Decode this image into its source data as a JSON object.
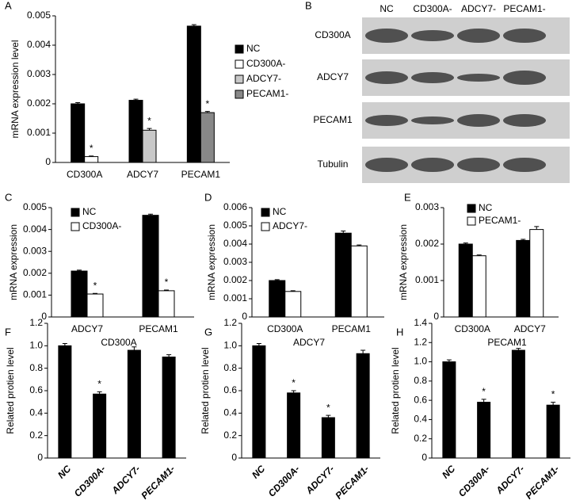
{
  "chart_data": [
    {
      "type": "bar",
      "panel": "A",
      "ylabel": "mRNA expression level",
      "categories": [
        "CD300A",
        "ADCY7",
        "PECAM1"
      ],
      "series": [
        {
          "name": "NC",
          "color": "#000000",
          "values": [
            0.002,
            0.00212,
            0.00465
          ],
          "errors": [
            4e-05,
            4e-05,
            5e-05
          ],
          "markers": [
            null,
            null,
            null
          ]
        },
        {
          "name": "CD300A-",
          "color": "#ffffff",
          "values": [
            0.0002,
            null,
            null
          ],
          "errors": [
            2e-05,
            null,
            null
          ],
          "markers": [
            "*",
            null,
            null
          ]
        },
        {
          "name": "ADCY7-",
          "color": "#c8c8c8",
          "values": [
            null,
            0.0011,
            null
          ],
          "errors": [
            null,
            6e-05,
            null
          ],
          "markers": [
            null,
            "*",
            null
          ]
        },
        {
          "name": "PECAM1-",
          "color": "#888888",
          "values": [
            null,
            null,
            0.0017
          ],
          "errors": [
            null,
            null,
            4e-05
          ],
          "markers": [
            null,
            null,
            "*"
          ]
        }
      ],
      "ylim": [
        0,
        0.005
      ],
      "yticks": [
        0,
        0.001,
        0.002,
        0.003,
        0.004,
        0.005
      ],
      "legend": "right"
    },
    {
      "type": "blot",
      "panel": "B",
      "lanes": [
        "NC",
        "CD300A-",
        "ADCY7-",
        "PECAM1-"
      ],
      "rows": [
        "CD300A",
        "ADCY7",
        "PECAM1",
        "Tubulin"
      ]
    },
    {
      "type": "bar",
      "panel": "C",
      "ylabel": "mRNA expression",
      "categories": [
        "ADCY7",
        "PECAM1"
      ],
      "series": [
        {
          "name": "NC",
          "color": "#000000",
          "values": [
            0.0021,
            0.00465
          ],
          "errors": [
            4e-05,
            5e-05
          ],
          "markers": [
            null,
            null
          ]
        },
        {
          "name": "CD300A-",
          "color": "#ffffff",
          "values": [
            0.00105,
            0.0012
          ],
          "errors": [
            3e-05,
            3e-05
          ],
          "markers": [
            "*",
            "*"
          ]
        }
      ],
      "ylim": [
        0,
        0.005
      ],
      "yticks": [
        0,
        0.001,
        0.002,
        0.003,
        0.004,
        0.005
      ],
      "legend": "upper left"
    },
    {
      "type": "bar",
      "panel": "D",
      "ylabel": "mRNA expression",
      "categories": [
        "CD300A",
        "PECAM1"
      ],
      "series": [
        {
          "name": "NC",
          "color": "#000000",
          "values": [
            0.002,
            0.0046
          ],
          "errors": [
            5e-05,
            0.00012
          ],
          "markers": [
            null,
            null
          ]
        },
        {
          "name": "ADCY7-",
          "color": "#ffffff",
          "values": [
            0.0014,
            0.0039
          ],
          "errors": [
            4e-05,
            5e-05
          ],
          "markers": [
            null,
            null
          ]
        }
      ],
      "ylim": [
        0,
        0.006
      ],
      "yticks": [
        0,
        0.001,
        0.002,
        0.003,
        0.004,
        0.005,
        0.006
      ],
      "legend": "upper left"
    },
    {
      "type": "bar",
      "panel": "E",
      "ylabel": "mRNA expression",
      "categories": [
        "CD300A",
        "ADCY7"
      ],
      "series": [
        {
          "name": "NC",
          "color": "#000000",
          "values": [
            0.002,
            0.0021
          ],
          "errors": [
            3e-05,
            3e-05
          ],
          "markers": [
            null,
            null
          ]
        },
        {
          "name": "PECAM1-",
          "color": "#ffffff",
          "values": [
            0.00168,
            0.0024
          ],
          "errors": [
            2e-05,
            8e-05
          ],
          "markers": [
            null,
            null
          ]
        }
      ],
      "ylim": [
        0,
        0.003
      ],
      "yticks": [
        0,
        0.001,
        0.002,
        0.003
      ],
      "legend": "upper left"
    },
    {
      "type": "bar",
      "panel": "F",
      "title": "CD300A",
      "ylabel": "Related protien level",
      "categories": [
        "NC",
        "CD300A-",
        "ADCY7-",
        "PECAM1-"
      ],
      "series": [
        {
          "color": "#000000",
          "values": [
            1.0,
            0.57,
            0.96,
            0.9
          ],
          "errors": [
            0.02,
            0.02,
            0.03,
            0.02
          ],
          "markers": [
            null,
            "*",
            null,
            null
          ]
        }
      ],
      "ylim": [
        0,
        1.2
      ],
      "yticks": [
        0,
        0.2,
        0.4,
        0.6,
        0.8,
        {
          "value": 1,
          "label": "1.0"
        },
        1.2
      ]
    },
    {
      "type": "bar",
      "panel": "G",
      "title": "ADCY7",
      "ylabel": "Related protien level",
      "categories": [
        "NC",
        "CD300A-",
        "ADCY7-",
        "PECAM1-"
      ],
      "series": [
        {
          "color": "#000000",
          "values": [
            1.0,
            0.58,
            0.36,
            0.93
          ],
          "errors": [
            0.02,
            0.02,
            0.02,
            0.03
          ],
          "markers": [
            null,
            "*",
            "*",
            null
          ]
        }
      ],
      "ylim": [
        0,
        1.2
      ],
      "yticks": [
        0,
        0.2,
        0.4,
        0.6,
        0.8,
        {
          "value": 1,
          "label": "1.0"
        },
        1.2
      ]
    },
    {
      "type": "bar",
      "panel": "H",
      "title": "PECAM1",
      "ylabel": "Related protien level",
      "categories": [
        "NC",
        "CD300A-",
        "ADCY7-",
        "PECAM1-"
      ],
      "series": [
        {
          "color": "#000000",
          "values": [
            1.0,
            0.58,
            1.12,
            0.55
          ],
          "errors": [
            0.02,
            0.03,
            0.02,
            0.03
          ],
          "markers": [
            null,
            "*",
            null,
            "*"
          ]
        }
      ],
      "ylim": [
        0,
        1.4
      ],
      "yticks": [
        0,
        0.2,
        0.4,
        0.6,
        0.8,
        {
          "value": 1,
          "label": "1.0"
        },
        1.2,
        1.4
      ]
    }
  ]
}
